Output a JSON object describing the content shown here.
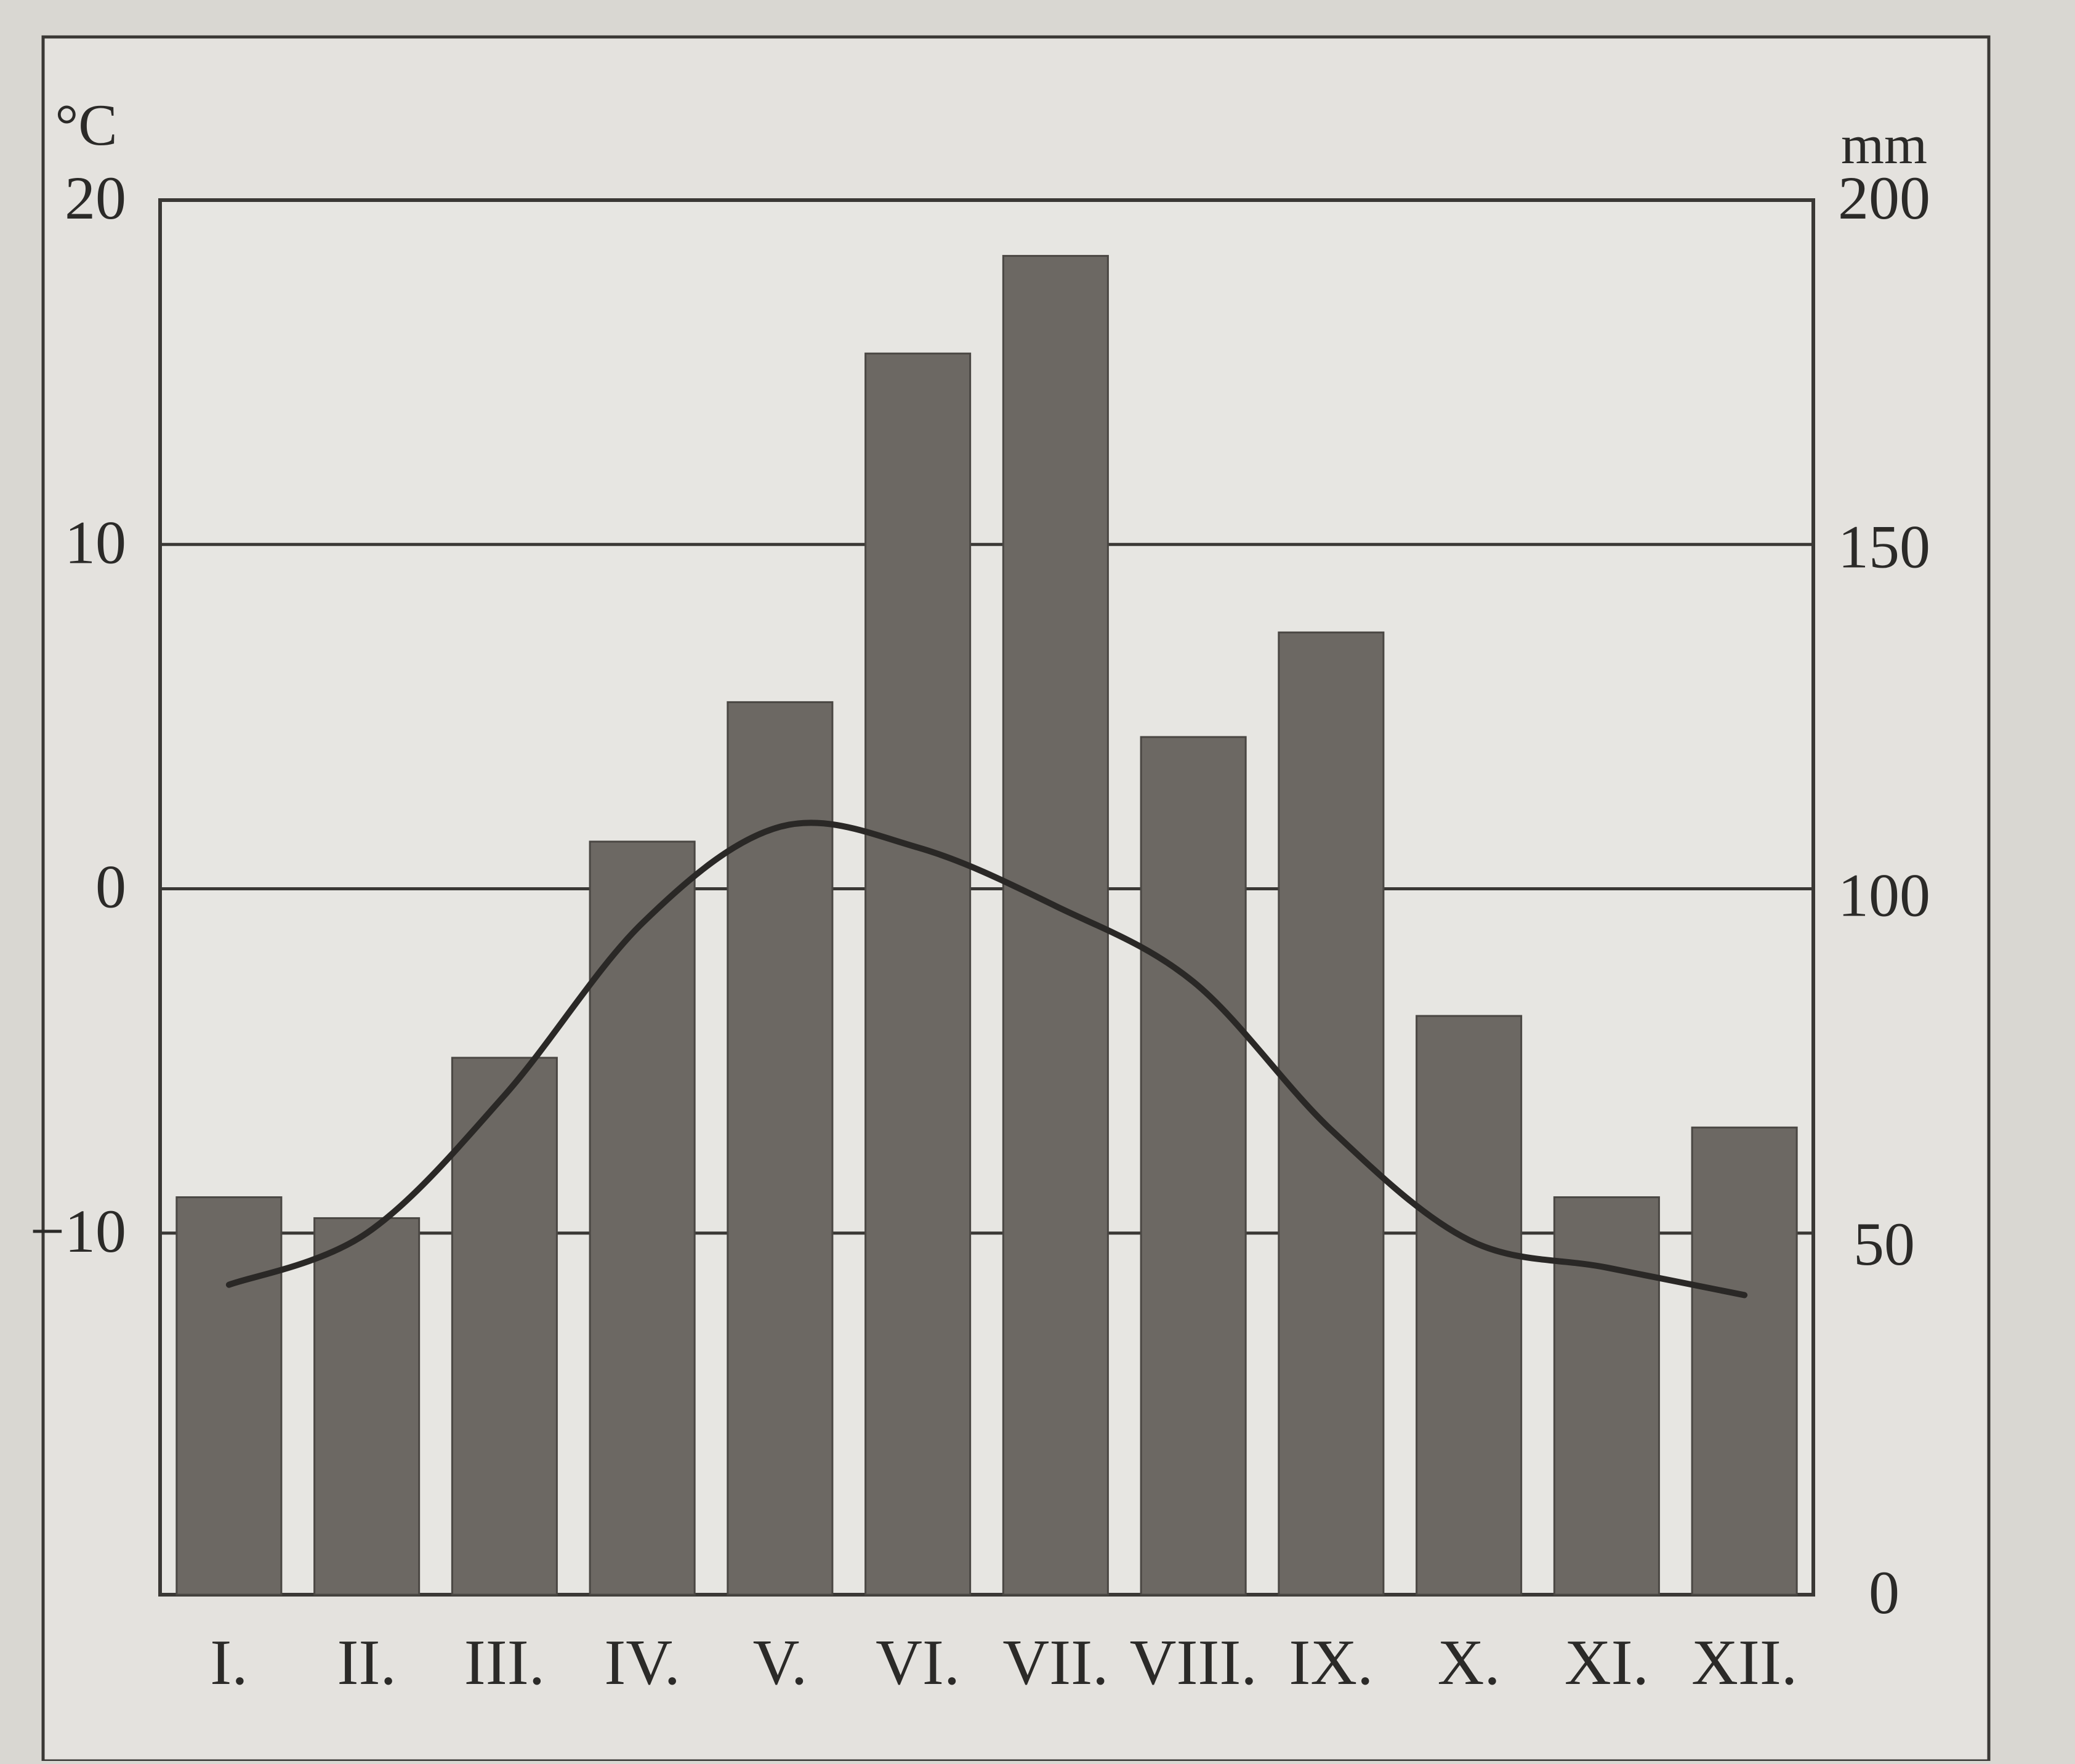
{
  "chart_data": {
    "type": "bar",
    "title": "",
    "left_axis": {
      "unit": "°C",
      "ticks": [
        "20",
        "10",
        "0",
        "−10"
      ],
      "tick_values": [
        20,
        10,
        0,
        -10
      ],
      "range": [
        -20.5,
        20
      ]
    },
    "right_axis": {
      "unit": "mm",
      "ticks": [
        "200",
        "150",
        "100",
        "50",
        "0"
      ],
      "tick_values": [
        200,
        150,
        100,
        50,
        0
      ],
      "range": [
        0,
        200
      ]
    },
    "categories": [
      "I.",
      "II.",
      "III.",
      "IV.",
      "V.",
      "VI.",
      "VII.",
      "VIII.",
      "IX.",
      "X.",
      "XI.",
      "XII."
    ],
    "series": [
      {
        "kind": "bar",
        "axis": "right",
        "values": [
          57,
          54,
          77,
          108,
          128,
          178,
          192,
          123,
          138,
          83,
          57,
          67
        ]
      },
      {
        "kind": "line",
        "axis": "left",
        "values": [
          -11.5,
          -10,
          -6,
          -1,
          1.8,
          1.2,
          -0.5,
          -2.7,
          -7,
          -10.2,
          -11,
          -11.8
        ]
      }
    ],
    "grid": true,
    "colors": {
      "background": "#d9d7d2",
      "panel": "#e7e6e2",
      "bar": "#6c6863",
      "line": "#2a2826",
      "grid": "#3a3835"
    }
  }
}
